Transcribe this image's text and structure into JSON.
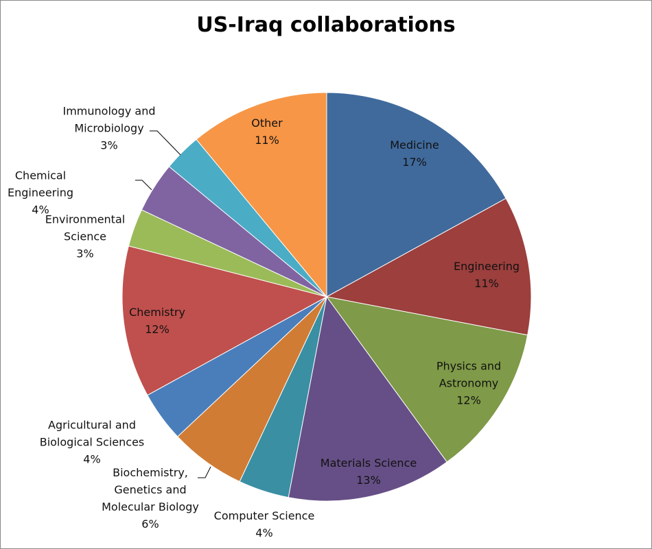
{
  "chart_data": {
    "type": "pie",
    "title": "US-Iraq collaborations",
    "categories": [
      "Medicine",
      "Engineering",
      "Physics and Astronomy",
      "Materials Science",
      "Computer Science",
      "Biochemistry, Genetics and Molecular Biology",
      "Agricultural and Biological Sciences",
      "Chemistry",
      "Environmental Science",
      "Chemical Engineering",
      "Immunology and Microbiology",
      "Other"
    ],
    "values": [
      17,
      11,
      12,
      13,
      4,
      6,
      4,
      12,
      3,
      4,
      3,
      11
    ],
    "value_labels": [
      "17%",
      "11%",
      "12%",
      "13%",
      "4%",
      "6%",
      "4%",
      "12%",
      "3%",
      "4%",
      "3%",
      "11%"
    ],
    "colors": [
      "#406a9c",
      "#9c3f3d",
      "#7f9a48",
      "#664f86",
      "#3a8fa3",
      "#d07c35",
      "#4a7ebb",
      "#c0504d",
      "#9bbb59",
      "#8064a2",
      "#4bacc6",
      "#f79646"
    ]
  }
}
